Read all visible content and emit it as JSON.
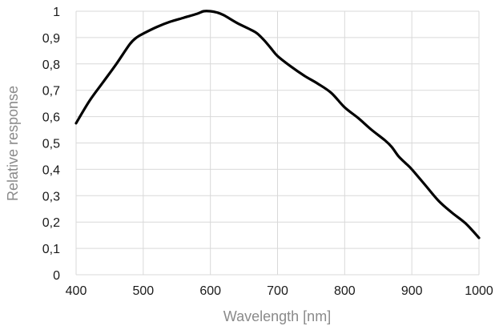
{
  "chart_data": {
    "type": "line",
    "title": "",
    "xlabel": "Wavelength [nm]",
    "ylabel": "Relative response",
    "xlim": [
      400,
      1000
    ],
    "ylim": [
      0,
      1
    ],
    "x_ticks": [
      400,
      500,
      600,
      700,
      800,
      900,
      1000
    ],
    "y_ticks": [
      "0",
      "0,1",
      "0,2",
      "0,3",
      "0,4",
      "0,5",
      "0,6",
      "0,7",
      "0,8",
      "0,9",
      "1"
    ],
    "y_tick_values": [
      0,
      0.1,
      0.2,
      0.3,
      0.4,
      0.5,
      0.6,
      0.7,
      0.8,
      0.9,
      1.0
    ],
    "grid": "vertical and horizontal",
    "legend": "none",
    "line_color": "#000000",
    "series": [
      {
        "x": [
          400,
          420,
          440,
          460,
          480,
          490,
          500,
          520,
          540,
          560,
          580,
          590,
          600,
          610,
          620,
          640,
          660,
          670,
          680,
          690,
          700,
          720,
          740,
          760,
          780,
          800,
          820,
          840,
          860,
          870,
          880,
          890,
          900,
          920,
          940,
          960,
          980,
          1000
        ],
        "y": [
          0.575,
          0.66,
          0.73,
          0.8,
          0.875,
          0.9,
          0.915,
          0.94,
          0.96,
          0.975,
          0.99,
          1.0,
          1.0,
          0.995,
          0.985,
          0.955,
          0.93,
          0.915,
          0.89,
          0.86,
          0.83,
          0.79,
          0.755,
          0.725,
          0.69,
          0.635,
          0.595,
          0.55,
          0.51,
          0.485,
          0.45,
          0.425,
          0.4,
          0.34,
          0.28,
          0.235,
          0.195,
          0.14
        ]
      }
    ]
  }
}
